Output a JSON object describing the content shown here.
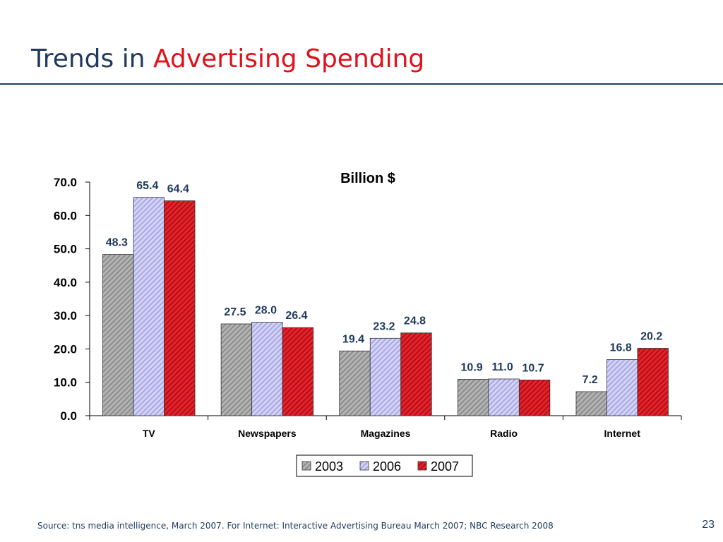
{
  "slide": {
    "title_prefix": "Trends in",
    "title_accent": "Advertising Spending",
    "source": "Source: tns media intelligence, March 2007. For Internet: Interactive Advertising Bureau March 2007; NBC Research 2008",
    "page_number": "23"
  },
  "colors": {
    "title": "#1f3a5c",
    "accent": "#e0111a",
    "s2003": "#a8a8a8",
    "s2006": "#c8c8f4",
    "s2007": "#e02028"
  },
  "chart_data": {
    "type": "bar",
    "title": "Billion $",
    "categories": [
      "TV",
      "Newspapers",
      "Magazines",
      "Radio",
      "Internet"
    ],
    "series": [
      {
        "name": "2003",
        "values": [
          48.3,
          27.5,
          19.4,
          10.9,
          7.2
        ]
      },
      {
        "name": "2006",
        "values": [
          65.4,
          28.0,
          23.2,
          11.0,
          16.8
        ]
      },
      {
        "name": "2007",
        "values": [
          64.4,
          26.4,
          24.8,
          10.7,
          20.2
        ]
      }
    ],
    "yticks": [
      "0.0",
      "10.0",
      "20.0",
      "30.0",
      "40.0",
      "50.0",
      "60.0",
      "70.0"
    ],
    "ylim": [
      0,
      70
    ],
    "xlabel": "",
    "ylabel": "",
    "legend_position": "bottom-center",
    "grid": false
  }
}
